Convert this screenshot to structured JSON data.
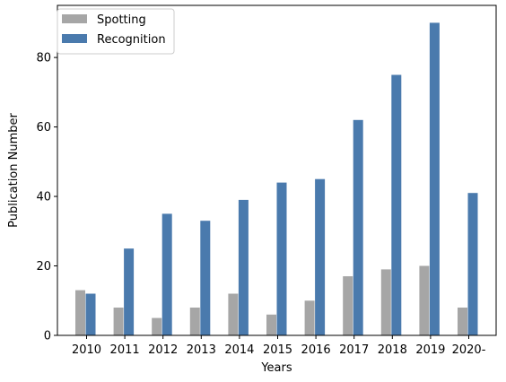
{
  "chart_data": {
    "type": "bar",
    "categories": [
      "2010",
      "2011",
      "2012",
      "2013",
      "2014",
      "2015",
      "2016",
      "2017",
      "2018",
      "2019",
      "2020-"
    ],
    "series": [
      {
        "name": "Spotting",
        "color": "#a6a6a6",
        "values": [
          13,
          8,
          5,
          8,
          12,
          6,
          10,
          17,
          19,
          20,
          8
        ]
      },
      {
        "name": "Recognition",
        "color": "#4a7aad",
        "values": [
          12,
          25,
          35,
          33,
          39,
          44,
          45,
          62,
          75,
          90,
          41
        ]
      }
    ],
    "xlabel": "Years",
    "ylabel": "Publication Number",
    "ylim": [
      0,
      95
    ],
    "yticks": [
      0,
      20,
      40,
      60,
      80
    ],
    "grid": false,
    "legend_position": "upper-left"
  }
}
